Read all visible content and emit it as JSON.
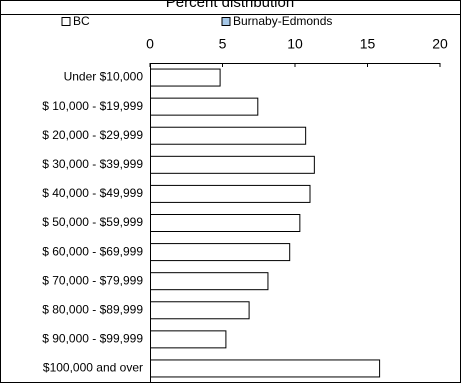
{
  "chart_data": {
    "type": "bar",
    "orientation": "horizontal",
    "title": "Percent distribution",
    "categories": [
      "Under $10,000",
      "$ 10,000 - $19,999",
      "$ 20,000 - $29,999",
      "$ 30,000 - $39,999",
      "$ 40,000 - $49,999",
      "$ 50,000 - $59,999",
      "$ 60,000 - $69,999",
      "$ 70,000 - $79,999",
      "$ 80,000 - $89,999",
      "$ 90,000 - $99,999",
      "$100,000 and over"
    ],
    "series": [
      {
        "name": "BC",
        "color": "#ffffff",
        "values": [
          4.8,
          7.4,
          10.7,
          11.3,
          11.0,
          10.3,
          9.6,
          8.1,
          6.8,
          5.2,
          15.8
        ]
      },
      {
        "name": "Burnaby-Edmonds",
        "color": "#a6c8e8",
        "values": [
          null,
          null,
          null,
          null,
          null,
          null,
          null,
          null,
          null,
          null,
          null
        ]
      }
    ],
    "xlim": [
      0,
      20
    ],
    "xticks": [
      0,
      5,
      10,
      15,
      20
    ],
    "grid": false
  }
}
